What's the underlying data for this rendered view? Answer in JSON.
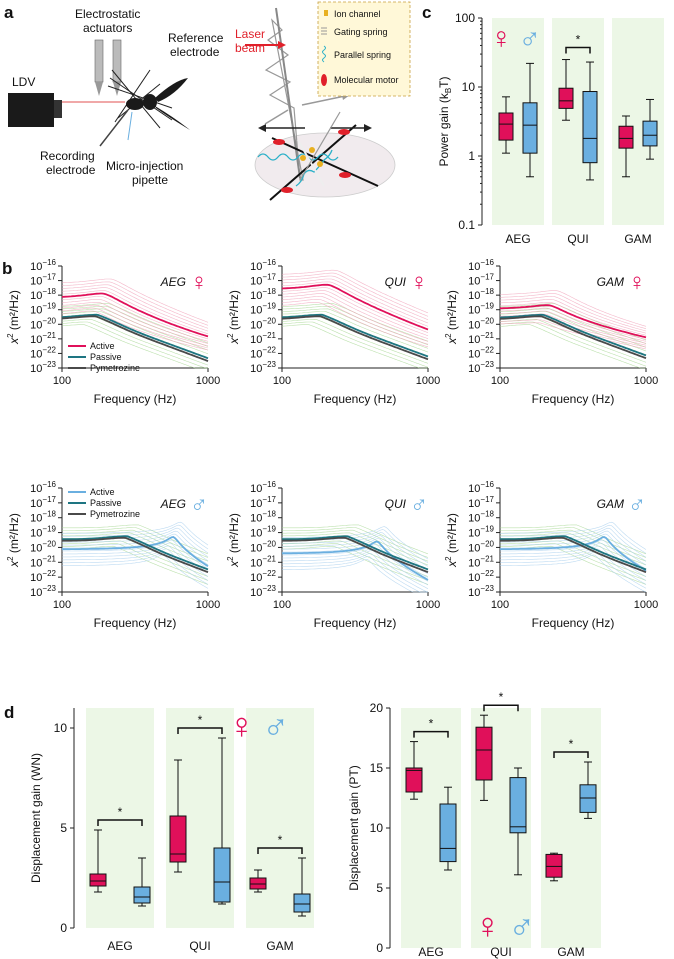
{
  "panel_labels": [
    "a",
    "b",
    "c",
    "d"
  ],
  "colors": {
    "female": "#e0105a",
    "male": "#6aafe0",
    "passive": "#1e7582",
    "pym": "#4a4a4a",
    "bg_green": "#ecf7e6",
    "dark": "#222222"
  },
  "panel_a": {
    "left_labels": [
      "Electrostatic",
      "actuators",
      "Reference",
      "electrode",
      "LDV",
      "Recording",
      "electrode",
      "Micro-injection",
      "pipette"
    ],
    "right_labels": [
      "Laser",
      "beam"
    ],
    "inset_labels": [
      "Ion channel",
      "Gating spring",
      "Parallel spring",
      "Molecular motor"
    ]
  },
  "panel_b": {
    "xlabel": "Frequency (Hz)",
    "ylabel_main": "x",
    "ylabel_sup": "2",
    "ylabel_rest": " (m²/Hz)",
    "xticks": [
      "100",
      "1000"
    ],
    "ytick_base": "10",
    "ytick_exps": [
      "−16",
      "−17",
      "−18",
      "−19",
      "−20",
      "−21",
      "−22",
      "−23"
    ],
    "female_symbol": "♀",
    "male_symbol": "♂",
    "legend_labels": [
      "Active",
      "Passive",
      "Pymetrozine"
    ],
    "subplots": [
      {
        "species": "AEG",
        "sex": "female",
        "peak_hz": 195,
        "active_peak": -17.9
      },
      {
        "species": "QUI",
        "sex": "female",
        "peak_hz": 210,
        "active_peak": -17.3
      },
      {
        "species": "GAM",
        "sex": "female",
        "peak_hz": 220,
        "active_peak": -18.7
      },
      {
        "species": "AEG",
        "sex": "male",
        "peak_hz": 580,
        "active_peak": -19.3
      },
      {
        "species": "QUI",
        "sex": "male",
        "peak_hz": 450,
        "active_peak": -19.6
      },
      {
        "species": "GAM",
        "sex": "male",
        "peak_hz": 520,
        "active_peak": -19.3
      }
    ]
  },
  "chart_data": [
    {
      "type": "box",
      "title": "c",
      "ylabel": "Power gain (k",
      "ylabel_sub": "B",
      "ylabel_end": "T)",
      "yscale": "log",
      "ylim": [
        0.1,
        100
      ],
      "yticks": [
        "0.1",
        "1",
        "10",
        "100"
      ],
      "categories": [
        "AEG",
        "QUI",
        "GAM"
      ],
      "significance_label": "*",
      "significant": [
        "QUI"
      ],
      "series": [
        {
          "name": "female",
          "boxes": [
            [
              1.1,
              1.7,
              2.9,
              4.2,
              7.2
            ],
            [
              3.3,
              4.9,
              6.3,
              9.6,
              25
            ],
            [
              0.5,
              1.3,
              1.8,
              2.7,
              3.8
            ]
          ]
        },
        {
          "name": "male",
          "boxes": [
            [
              0.5,
              1.1,
              2.8,
              5.9,
              22
            ],
            [
              0.45,
              0.8,
              1.8,
              8.6,
              23
            ],
            [
              0.9,
              1.4,
              2.0,
              3.2,
              6.6
            ]
          ]
        }
      ]
    },
    {
      "type": "box",
      "title": "d-left",
      "ylabel": "Displacement gain (WN)",
      "ylim": [
        0,
        11
      ],
      "yticks": [
        "0",
        "5",
        "10"
      ],
      "categories": [
        "AEG",
        "QUI",
        "GAM"
      ],
      "significance_label": "*",
      "significant": [
        "AEG",
        "QUI",
        "GAM"
      ],
      "series": [
        {
          "name": "female",
          "boxes": [
            [
              1.8,
              2.1,
              2.35,
              2.7,
              4.9
            ],
            [
              2.8,
              3.3,
              3.7,
              5.6,
              8.4
            ],
            [
              1.8,
              1.95,
              2.2,
              2.5,
              2.9
            ]
          ]
        },
        {
          "name": "male",
          "boxes": [
            [
              1.1,
              1.25,
              1.55,
              2.05,
              3.5
            ],
            [
              1.2,
              1.3,
              2.3,
              4.0,
              9.5
            ],
            [
              0.6,
              0.8,
              1.2,
              1.7,
              3.5
            ]
          ]
        }
      ]
    },
    {
      "type": "box",
      "title": "d-right",
      "ylabel": "Displacement gain (PT)",
      "ylim": [
        0,
        20
      ],
      "yticks": [
        "0",
        "5",
        "10",
        "15",
        "20"
      ],
      "categories": [
        "AEG",
        "QUI",
        "GAM"
      ],
      "significance_label": "*",
      "significant": [
        "AEG",
        "QUI",
        "GAM"
      ],
      "series": [
        {
          "name": "female",
          "boxes": [
            [
              12.4,
              13,
              14.8,
              15,
              17.2
            ],
            [
              12.3,
              14,
              16.5,
              18.4,
              19.4
            ],
            [
              5.6,
              5.9,
              6.8,
              7.8,
              7.9
            ]
          ]
        },
        {
          "name": "male",
          "boxes": [
            [
              6.5,
              7.2,
              8.3,
              12,
              13.4
            ],
            [
              6.1,
              9.6,
              10.1,
              14.2,
              15
            ],
            [
              10.8,
              11.3,
              12.5,
              13.6,
              15.5
            ]
          ]
        }
      ]
    }
  ]
}
